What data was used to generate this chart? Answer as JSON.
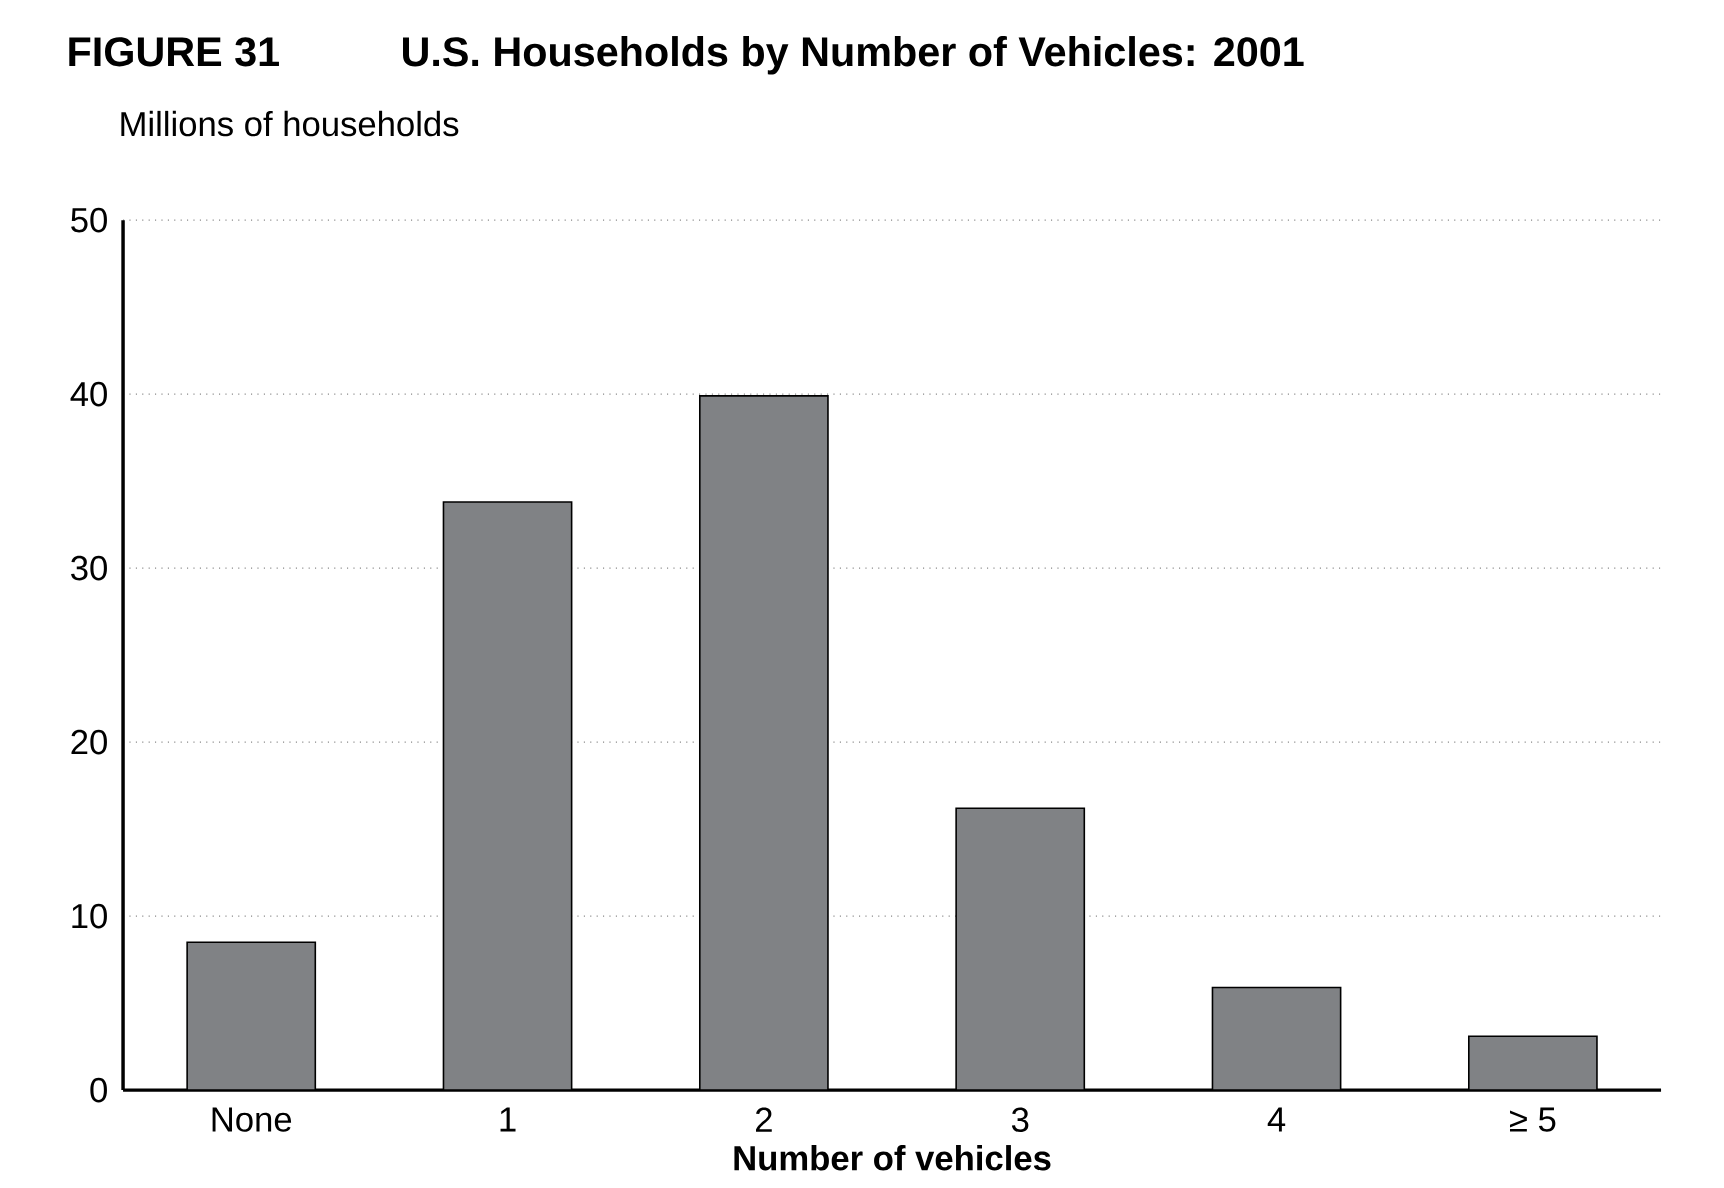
{
  "chart_data": {
    "type": "bar",
    "title": "U.S. Households by Number of Vehicles: 2001",
    "ylabel": "Millions of households",
    "xlabel": "Number of vehicles",
    "annotations": [
      "FIGURE 31"
    ],
    "categories": [
      "None",
      "1",
      "2",
      "3",
      "4",
      "≥ 5"
    ],
    "values": [
      8.5,
      33.8,
      39.9,
      16.2,
      5.9,
      3.1
    ],
    "color": "#808285",
    "ylim": [
      0,
      50
    ],
    "yticks": [
      0,
      10,
      20,
      30,
      40,
      50
    ],
    "grid": "y"
  }
}
